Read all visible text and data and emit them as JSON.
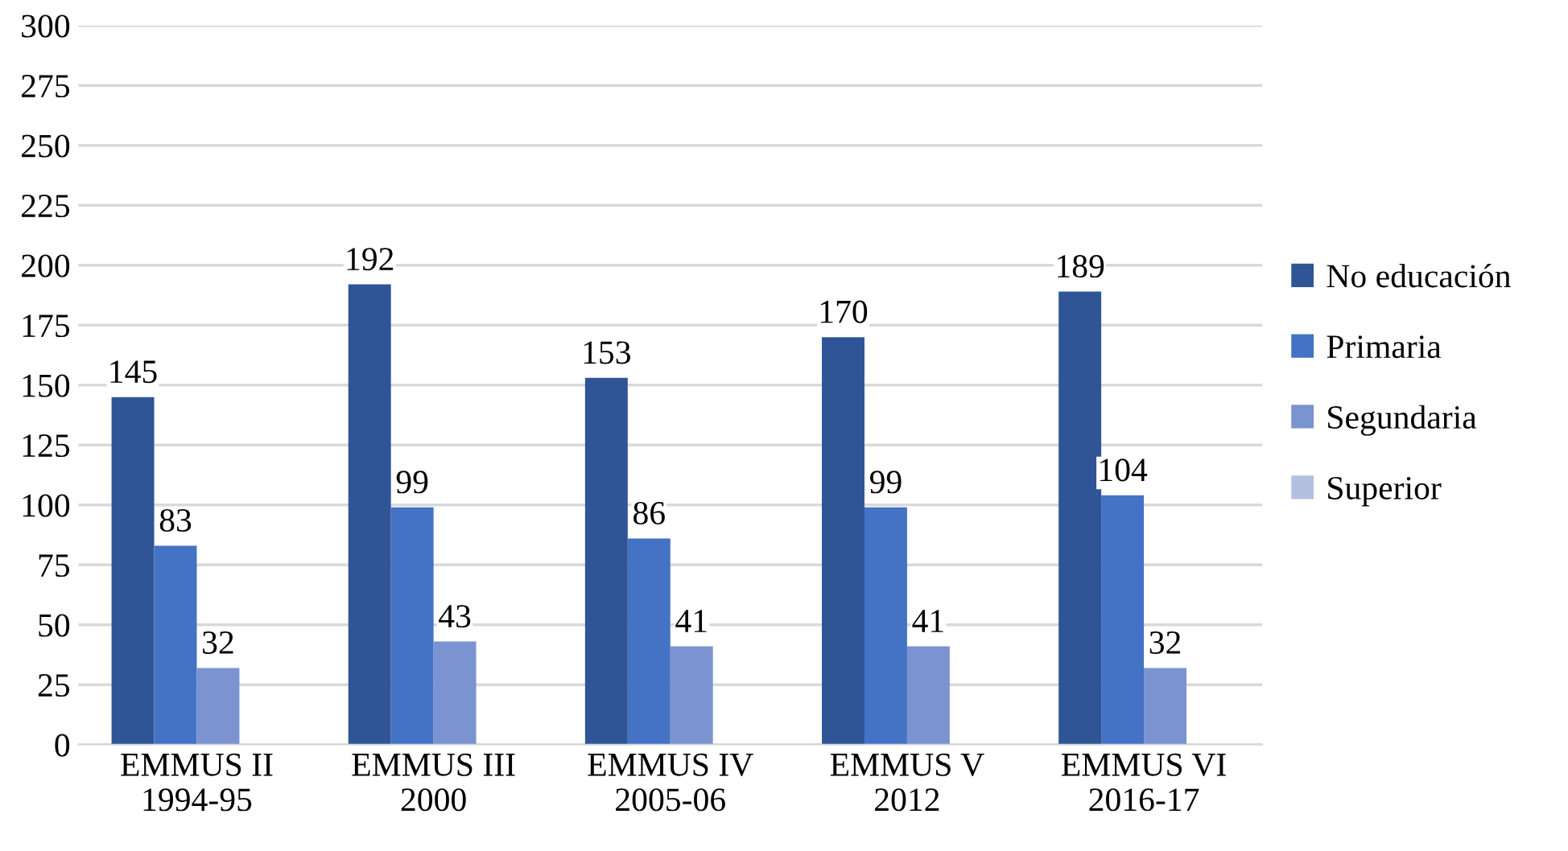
{
  "chart_data": {
    "type": "bar",
    "categories": [
      "EMMUS II\n1994-95",
      "EMMUS III\n2000",
      "EMMUS IV\n2005-06",
      "EMMUS V\n2012",
      "EMMUS VI\n2016-17"
    ],
    "series": [
      {
        "name": "No educación",
        "color": "#2f5597",
        "values": [
          145,
          192,
          153,
          170,
          189
        ]
      },
      {
        "name": "Primaria",
        "color": "#4472c4",
        "values": [
          83,
          99,
          86,
          99,
          104
        ]
      },
      {
        "name": "Segundaria",
        "color": "#7b93d0",
        "values": [
          32,
          43,
          41,
          41,
          32
        ]
      },
      {
        "name": "Superior",
        "color": "#b4c0e0",
        "values": [
          null,
          null,
          null,
          null,
          null
        ]
      }
    ],
    "ylim": [
      0,
      300
    ],
    "yticks": [
      0,
      25,
      50,
      75,
      100,
      125,
      150,
      175,
      200,
      225,
      250,
      275,
      300
    ],
    "grid": "y",
    "legend": "right",
    "data_labels": true
  }
}
